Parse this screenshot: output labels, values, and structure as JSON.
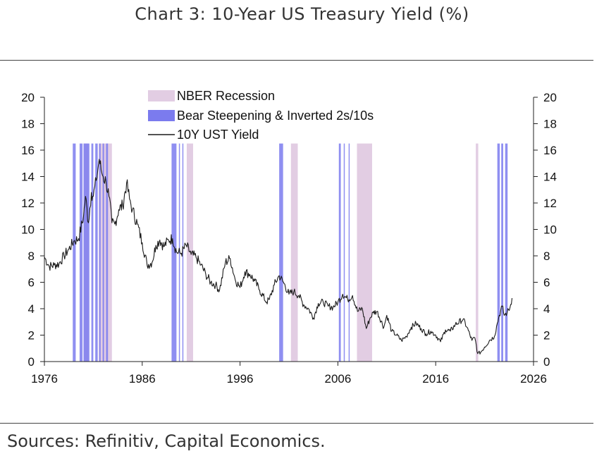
{
  "header": {
    "title": "Chart 3: 10-Year US Treasury Yield (%)"
  },
  "footer": {
    "source": "Sources: Refinitiv, Capital Economics."
  },
  "colors": {
    "recession": "#e2cde3",
    "bear": "#7b7bee",
    "line": "#1a1a1a",
    "axis": "#222222"
  },
  "chart_data": {
    "type": "line",
    "title": "Chart 3: 10-Year US Treasury Yield (%)",
    "xlabel": "",
    "ylabel": "",
    "xlim": [
      1976,
      2026
    ],
    "ylim": [
      0,
      20
    ],
    "x_ticks": [
      "1976",
      "1986",
      "1996",
      "2006",
      "2016",
      "2026"
    ],
    "y_ticks": [
      "0",
      "2",
      "4",
      "6",
      "8",
      "10",
      "12",
      "14",
      "16",
      "18",
      "20"
    ],
    "legend": {
      "position": "top-center",
      "entries": [
        "NBER Recession",
        "Bear Steepening & Inverted 2s/10s",
        "10Y UST Yield"
      ]
    },
    "shaded_top": 16.5,
    "recessions": [
      [
        1980.0,
        1980.5
      ],
      [
        1981.55,
        1982.9
      ],
      [
        1990.55,
        1991.2
      ],
      [
        2001.2,
        2001.9
      ],
      [
        2007.95,
        2009.5
      ],
      [
        2020.1,
        2020.35
      ]
    ],
    "bear_steepening": [
      [
        1978.9,
        1979.2
      ],
      [
        1979.6,
        1979.9
      ],
      [
        1980.0,
        1980.6
      ],
      [
        1980.8,
        1981.0
      ],
      [
        1981.2,
        1981.45
      ],
      [
        1981.6,
        1981.75
      ],
      [
        1981.95,
        1982.1
      ],
      [
        1982.3,
        1982.5
      ],
      [
        1989.0,
        1989.5
      ],
      [
        1989.75,
        1989.85
      ],
      [
        1990.1,
        1990.2
      ],
      [
        2000.0,
        2000.4
      ],
      [
        2006.1,
        2006.3
      ],
      [
        2006.6,
        2006.7
      ],
      [
        2007.1,
        2007.2
      ],
      [
        2022.3,
        2022.55
      ],
      [
        2022.7,
        2022.9
      ],
      [
        2023.1,
        2023.35
      ]
    ],
    "series": [
      {
        "name": "10Y UST Yield",
        "x": [
          1976.0,
          1976.5,
          1977.0,
          1977.5,
          1978.0,
          1978.5,
          1979.0,
          1979.5,
          1980.0,
          1980.2,
          1980.5,
          1980.8,
          1981.0,
          1981.3,
          1981.6,
          1981.8,
          1982.0,
          1982.3,
          1982.6,
          1982.9,
          1983.2,
          1983.6,
          1984.0,
          1984.4,
          1984.7,
          1985.0,
          1985.5,
          1986.0,
          1986.5,
          1987.0,
          1987.4,
          1987.8,
          1988.2,
          1988.7,
          1989.1,
          1989.5,
          1990.0,
          1990.5,
          1991.0,
          1991.5,
          1992.0,
          1992.5,
          1993.0,
          1993.5,
          1993.9,
          1994.5,
          1995.0,
          1995.5,
          1996.0,
          1996.5,
          1997.0,
          1997.5,
          1998.0,
          1998.7,
          1999.0,
          1999.5,
          2000.0,
          2000.5,
          2001.0,
          2001.5,
          2002.0,
          2002.5,
          2003.0,
          2003.5,
          2004.0,
          2004.5,
          2005.0,
          2005.5,
          2006.0,
          2006.5,
          2007.0,
          2007.5,
          2008.0,
          2008.5,
          2008.9,
          2009.3,
          2009.6,
          2010.0,
          2010.7,
          2011.0,
          2011.5,
          2012.0,
          2012.5,
          2013.0,
          2013.5,
          2014.0,
          2014.5,
          2015.0,
          2015.5,
          2016.0,
          2016.5,
          2017.0,
          2017.5,
          2018.0,
          2018.8,
          2019.2,
          2019.7,
          2020.0,
          2020.3,
          2020.6,
          2021.0,
          2021.5,
          2022.0,
          2022.3,
          2022.5,
          2022.8,
          2023.0,
          2023.3,
          2023.6,
          2023.8
        ],
        "values": [
          7.9,
          7.2,
          7.3,
          7.4,
          8.0,
          8.5,
          9.1,
          9.3,
          11.0,
          12.5,
          10.5,
          12.8,
          12.5,
          13.7,
          15.3,
          14.5,
          14.0,
          13.6,
          12.5,
          10.5,
          10.4,
          11.5,
          11.8,
          13.5,
          12.3,
          11.5,
          10.4,
          9.0,
          7.3,
          7.5,
          8.8,
          9.2,
          8.7,
          9.2,
          9.3,
          8.3,
          8.2,
          8.8,
          8.1,
          7.9,
          7.3,
          6.6,
          6.0,
          5.8,
          5.4,
          7.5,
          7.8,
          6.2,
          5.6,
          6.8,
          6.6,
          6.1,
          5.4,
          4.5,
          4.7,
          5.8,
          6.5,
          5.9,
          5.1,
          5.3,
          5.0,
          4.3,
          4.0,
          3.3,
          4.4,
          4.5,
          4.2,
          4.1,
          4.5,
          5.1,
          4.7,
          5.0,
          3.8,
          4.0,
          2.5,
          3.3,
          3.7,
          3.8,
          2.6,
          3.5,
          2.3,
          2.0,
          1.6,
          1.9,
          2.6,
          2.9,
          2.5,
          2.1,
          2.3,
          2.0,
          1.5,
          2.4,
          2.3,
          2.8,
          3.2,
          2.6,
          1.6,
          1.8,
          0.6,
          0.7,
          1.1,
          1.6,
          1.9,
          2.9,
          3.5,
          4.2,
          3.5,
          3.7,
          4.1,
          4.8
        ]
      }
    ]
  }
}
